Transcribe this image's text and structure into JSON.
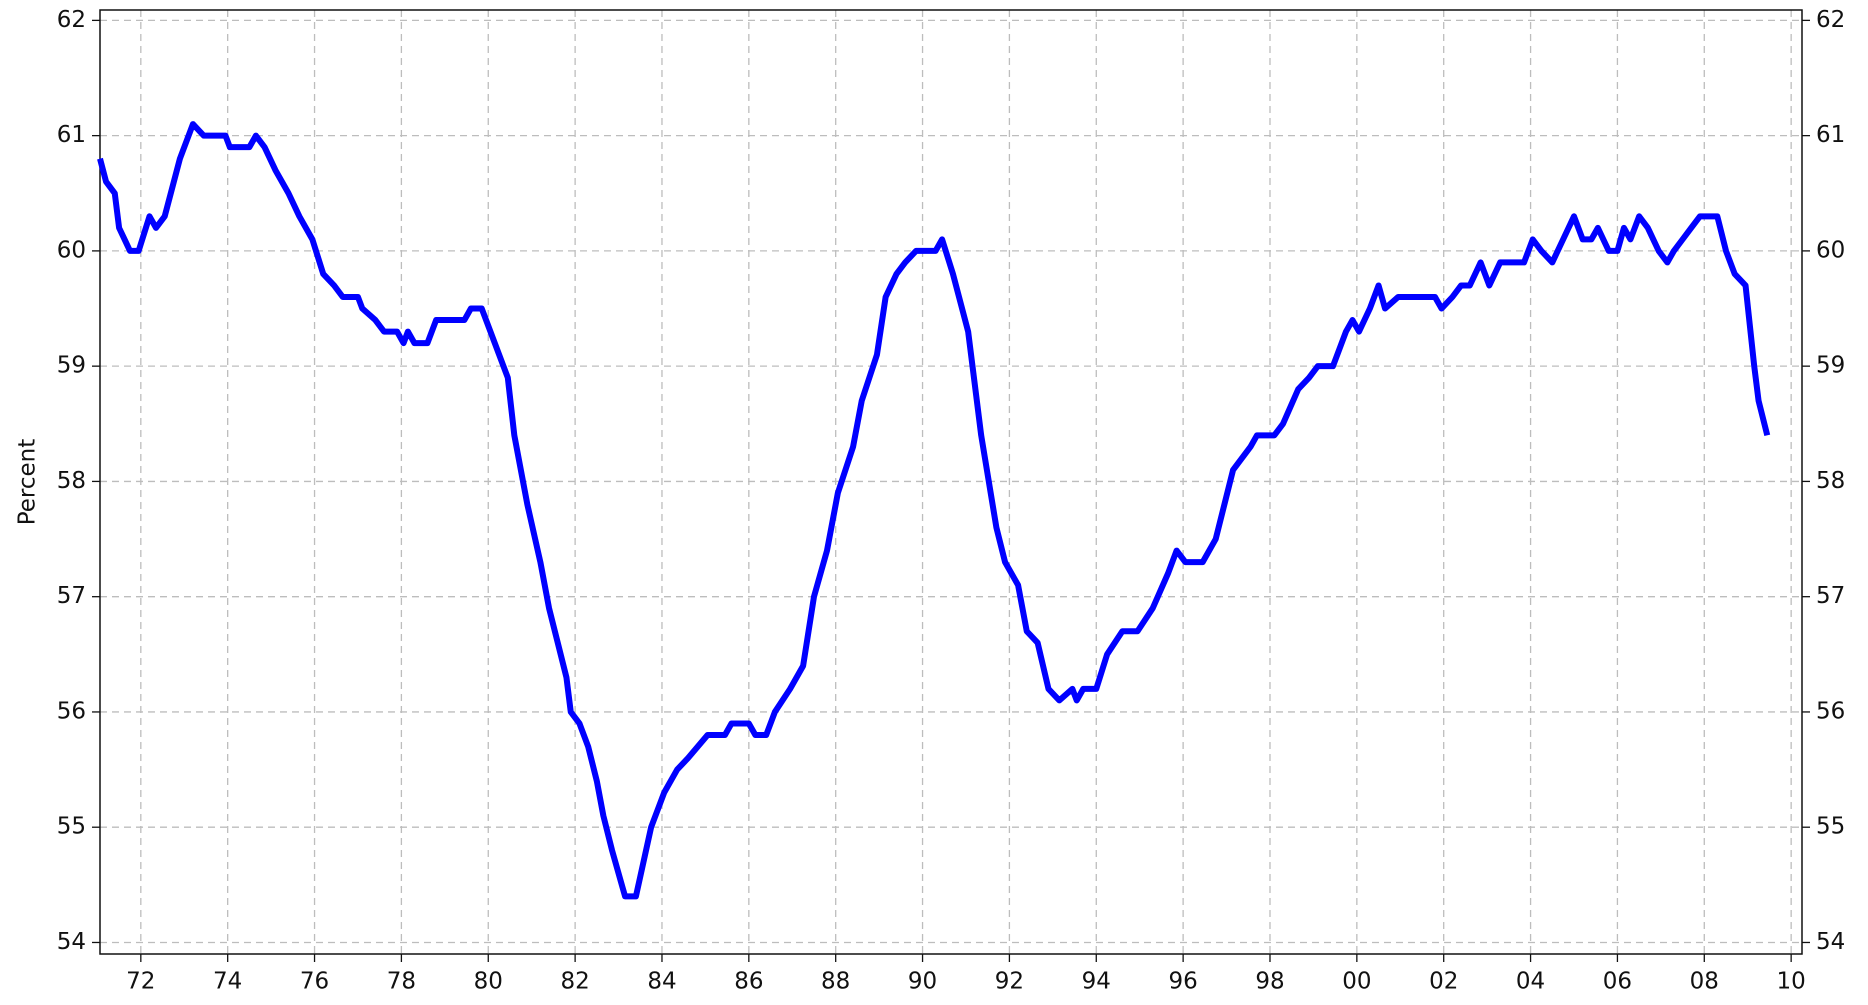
{
  "chart_data": {
    "type": "line",
    "y_label": "Percent",
    "x": [
      1971.06,
      1971.2,
      1971.4,
      1971.5,
      1971.75,
      1971.95,
      1972.2,
      1972.35,
      1972.55,
      1972.9,
      1973.2,
      1973.45,
      1973.95,
      1974.05,
      1974.5,
      1974.65,
      1974.85,
      1975.1,
      1975.4,
      1975.65,
      1975.95,
      1976.2,
      1976.45,
      1976.65,
      1977.0,
      1977.1,
      1977.4,
      1977.6,
      1977.9,
      1978.05,
      1978.15,
      1978.3,
      1978.6,
      1978.8,
      1979.45,
      1979.6,
      1979.85,
      1980.05,
      1980.45,
      1980.6,
      1980.9,
      1981.2,
      1981.4,
      1981.6,
      1981.8,
      1981.9,
      1982.1,
      1982.3,
      1982.5,
      1982.65,
      1982.85,
      1983.15,
      1983.4,
      1983.75,
      1984.05,
      1984.35,
      1984.6,
      1985.05,
      1985.45,
      1985.6,
      1986.0,
      1986.15,
      1986.4,
      1986.6,
      1986.95,
      1987.25,
      1987.5,
      1987.8,
      1988.05,
      1988.4,
      1988.6,
      1988.95,
      1989.15,
      1989.4,
      1989.6,
      1989.85,
      1990.3,
      1990.45,
      1990.7,
      1991.05,
      1991.35,
      1991.7,
      1991.9,
      1992.2,
      1992.4,
      1992.65,
      1992.9,
      1993.15,
      1993.45,
      1993.55,
      1993.7,
      1994.0,
      1994.25,
      1994.6,
      1994.95,
      1995.3,
      1995.65,
      1995.85,
      1996.05,
      1996.45,
      1996.75,
      1997.15,
      1997.55,
      1997.7,
      1998.1,
      1998.3,
      1998.65,
      1998.9,
      1999.1,
      1999.45,
      1999.75,
      1999.9,
      2000.05,
      2000.3,
      2000.5,
      2000.65,
      2000.95,
      2001.8,
      2001.95,
      2002.2,
      2002.4,
      2002.6,
      2002.85,
      2003.05,
      2003.3,
      2003.85,
      2004.05,
      2004.25,
      2004.5,
      2004.75,
      2005.0,
      2005.2,
      2005.4,
      2005.55,
      2005.8,
      2006.0,
      2006.15,
      2006.3,
      2006.5,
      2006.7,
      2006.95,
      2007.15,
      2007.3,
      2007.5,
      2007.7,
      2007.9,
      2008.3,
      2008.5,
      2008.7,
      2008.95,
      2009.15,
      2009.25,
      2009.45
    ],
    "series": [
      {
        "color": "#0000ff",
        "values": [
          60.8,
          60.6,
          60.5,
          60.2,
          60.0,
          60.0,
          60.3,
          60.2,
          60.3,
          60.8,
          61.1,
          61.0,
          61.0,
          60.9,
          60.9,
          61.0,
          60.9,
          60.7,
          60.5,
          60.3,
          60.1,
          59.8,
          59.7,
          59.6,
          59.6,
          59.5,
          59.4,
          59.3,
          59.3,
          59.2,
          59.3,
          59.2,
          59.2,
          59.4,
          59.4,
          59.5,
          59.5,
          59.3,
          58.9,
          58.4,
          57.8,
          57.3,
          56.9,
          56.6,
          56.3,
          56.0,
          55.9,
          55.7,
          55.4,
          55.1,
          54.8,
          54.4,
          54.4,
          55.0,
          55.3,
          55.5,
          55.6,
          55.8,
          55.8,
          55.9,
          55.9,
          55.8,
          55.8,
          56.0,
          56.2,
          56.4,
          57.0,
          57.4,
          57.9,
          58.3,
          58.7,
          59.1,
          59.6,
          59.8,
          59.9,
          60.0,
          60.0,
          60.1,
          59.8,
          59.3,
          58.4,
          57.6,
          57.3,
          57.1,
          56.7,
          56.6,
          56.2,
          56.1,
          56.2,
          56.1,
          56.2,
          56.2,
          56.5,
          56.7,
          56.7,
          56.9,
          57.2,
          57.4,
          57.3,
          57.3,
          57.5,
          58.1,
          58.3,
          58.4,
          58.4,
          58.5,
          58.8,
          58.9,
          59.0,
          59.0,
          59.3,
          59.4,
          59.3,
          59.5,
          59.7,
          59.5,
          59.6,
          59.6,
          59.5,
          59.6,
          59.7,
          59.7,
          59.9,
          59.7,
          59.9,
          59.9,
          60.1,
          60.0,
          59.9,
          60.1,
          60.3,
          60.1,
          60.1,
          60.2,
          60.0,
          60.0,
          60.2,
          60.1,
          60.3,
          60.2,
          60.0,
          59.9,
          60.0,
          60.1,
          60.2,
          60.3,
          60.3,
          60.0,
          59.8,
          59.7,
          59.0,
          58.7,
          58.4
        ]
      }
    ],
    "xlim": [
      1971.06,
      2010.25
    ],
    "xticks": [
      {
        "value": 1972,
        "label": "72"
      },
      {
        "value": 1974,
        "label": "74"
      },
      {
        "value": 1976,
        "label": "76"
      },
      {
        "value": 1978,
        "label": "78"
      },
      {
        "value": 1980,
        "label": "80"
      },
      {
        "value": 1982,
        "label": "82"
      },
      {
        "value": 1984,
        "label": "84"
      },
      {
        "value": 1986,
        "label": "86"
      },
      {
        "value": 1988,
        "label": "88"
      },
      {
        "value": 1990,
        "label": "90"
      },
      {
        "value": 1992,
        "label": "92"
      },
      {
        "value": 1994,
        "label": "94"
      },
      {
        "value": 1996,
        "label": "96"
      },
      {
        "value": 1998,
        "label": "98"
      },
      {
        "value": 2000,
        "label": "00"
      },
      {
        "value": 2002,
        "label": "02"
      },
      {
        "value": 2004,
        "label": "04"
      },
      {
        "value": 2006,
        "label": "06"
      },
      {
        "value": 2008,
        "label": "08"
      },
      {
        "value": 2010,
        "label": "10"
      }
    ],
    "ylim": [
      53.9,
      62.09
    ],
    "yticks": [
      54,
      55,
      56,
      57,
      58,
      59,
      60,
      61,
      62
    ],
    "y2lim": [
      53.9,
      62.09
    ],
    "y2ticks": [
      54,
      55,
      56,
      57,
      58,
      59,
      60,
      61,
      62
    ],
    "grid": true
  }
}
